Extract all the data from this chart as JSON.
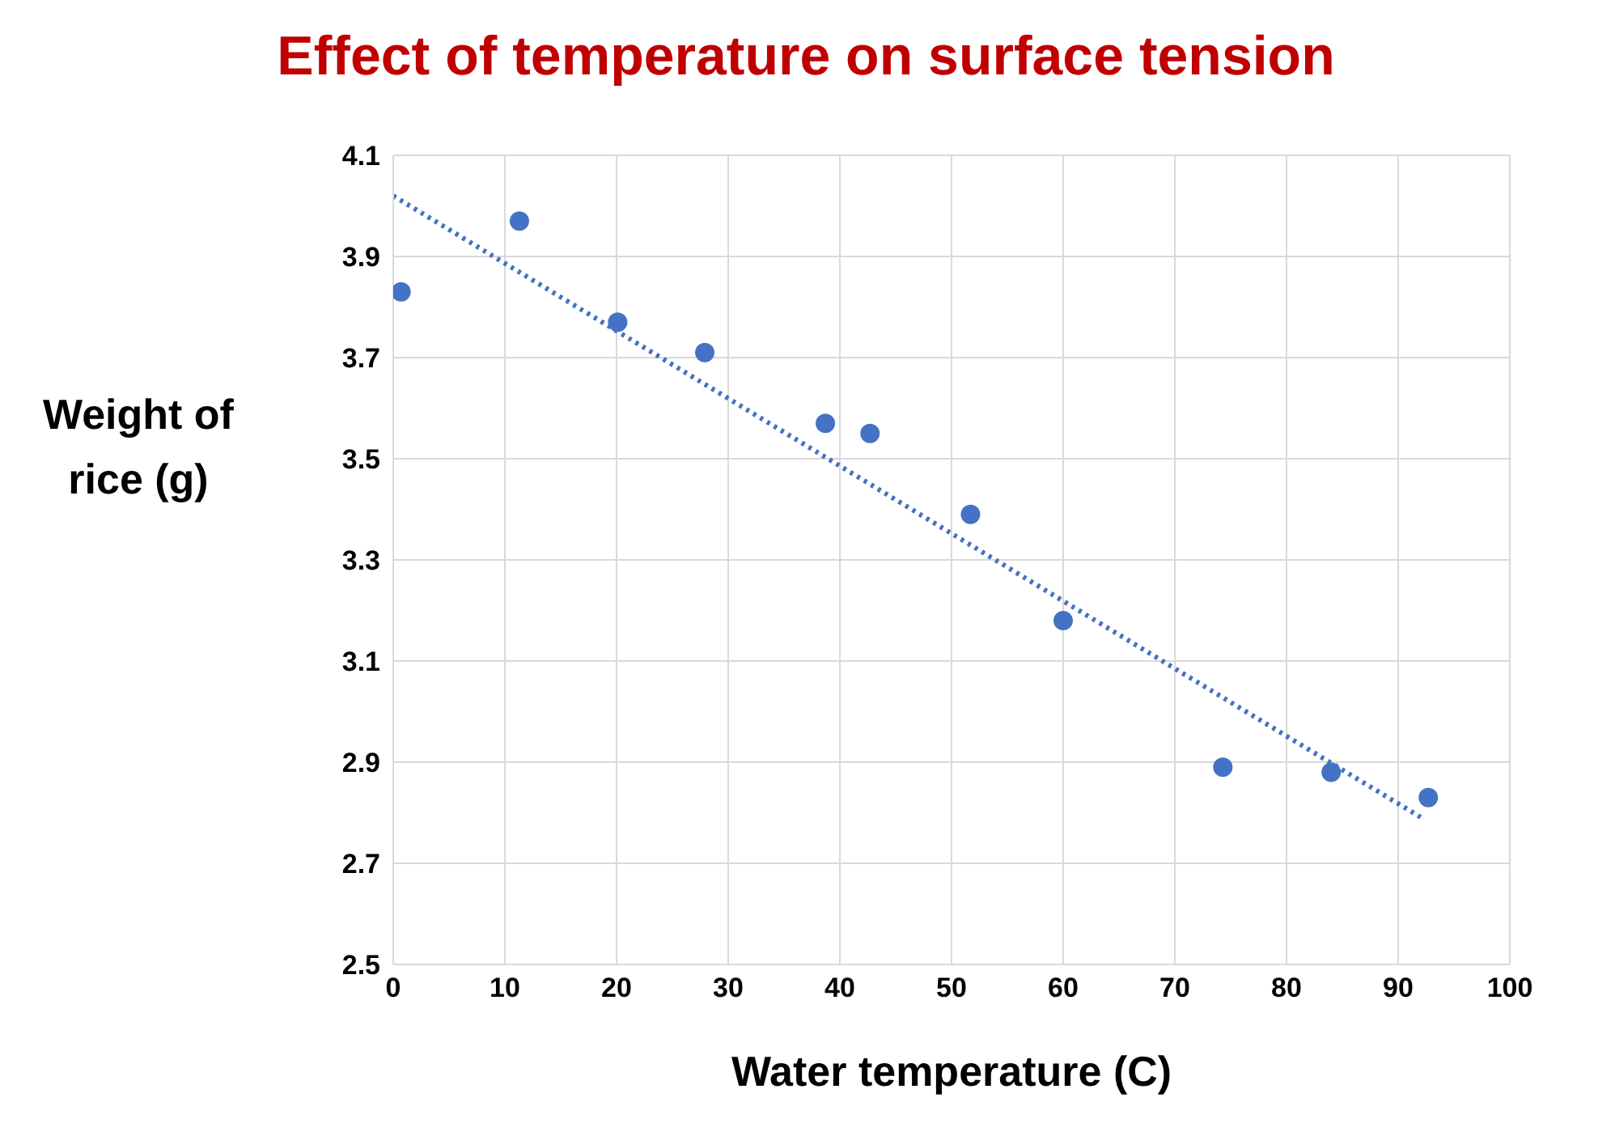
{
  "chart_data": {
    "type": "scatter",
    "title": "Effect of temperature on surface tension",
    "xlabel": "Water temperature (C)",
    "ylabel": "Weight of rice (g)",
    "series": [
      {
        "color": "#4472c4",
        "x": [
          0.7,
          11.3,
          20.1,
          27.9,
          38.7,
          42.7,
          51.7,
          60.0,
          74.3,
          84.0,
          92.7
        ],
        "values": [
          3.83,
          3.97,
          3.77,
          3.71,
          3.57,
          3.55,
          3.39,
          3.18,
          2.89,
          2.88,
          2.83
        ]
      },
      {
        "type": "line",
        "color": "#4472c4",
        "line_style": "dotted",
        "marker": "none",
        "x": [
          0,
          92.1
        ],
        "values": [
          4.02,
          2.79
        ]
      }
    ],
    "marker": "circle",
    "xlim": [
      0,
      100
    ],
    "xticks": [
      0,
      10,
      20,
      30,
      40,
      50,
      60,
      70,
      80,
      90,
      100
    ],
    "ylim": [
      2.5,
      4.1
    ],
    "yticks": [
      2.5,
      2.7,
      2.9,
      3.1,
      3.3,
      3.5,
      3.7,
      3.9,
      4.1
    ],
    "grid": true,
    "legend": false
  }
}
